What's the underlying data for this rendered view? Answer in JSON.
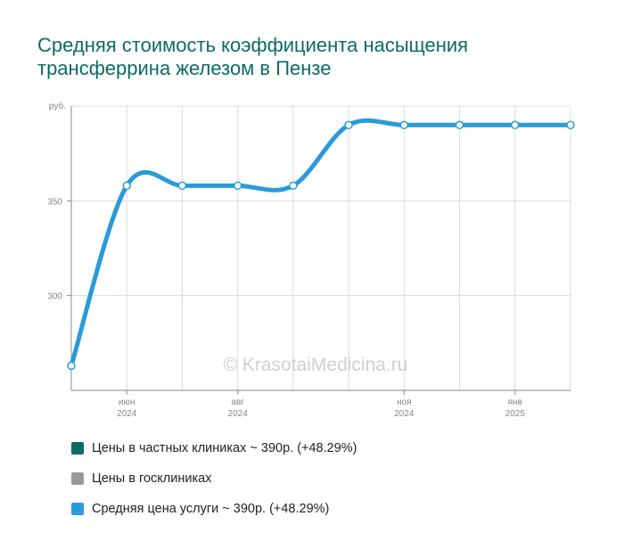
{
  "title": "Средняя стоимость коэффициента насыщения трансферрина железом в Пензе",
  "watermark": "© KrasotaiMedicina.ru",
  "legend": {
    "private": "Цены в частных клиниках ~ 390р. (+48.29%)",
    "public": "Цены в госклиниках",
    "average": "Средняя цена услуги ~ 390р. (+48.29%)"
  },
  "colors": {
    "private": "#0d6b63",
    "public": "#999999",
    "average": "#2a9bd8",
    "title": "#0d6b63",
    "grid": "#dddddd"
  },
  "chart_data": {
    "type": "line",
    "title": "Средняя стоимость коэффициента насыщения трансферрина железом в Пензе",
    "ylabel": "руб.",
    "ylim": [
      250,
      400
    ],
    "yticks": [
      300,
      350
    ],
    "grid": true,
    "legend_position": "bottom",
    "x": [
      "2024-05",
      "2024-06",
      "2024-07",
      "2024-08",
      "2024-09",
      "2024-10",
      "2024-11",
      "2024-12",
      "2025-01",
      "2025-02"
    ],
    "xticks": [
      {
        "month": "июн",
        "year": "2024"
      },
      {
        "month": "авг",
        "year": "2024"
      },
      {
        "month": "ноя",
        "year": "2024"
      },
      {
        "month": "янв",
        "year": "2025"
      }
    ],
    "series": [
      {
        "name": "Средняя цена услуги ~ 390р. (+48.29%)",
        "values": [
          263,
          358,
          358,
          358,
          358,
          390,
          390,
          390,
          390,
          390
        ]
      }
    ]
  }
}
